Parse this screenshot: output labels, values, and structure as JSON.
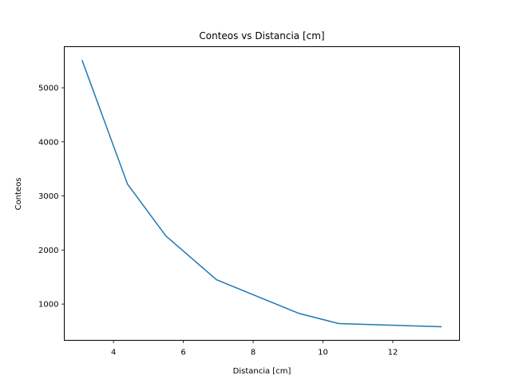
{
  "chart_data": {
    "type": "line",
    "title": "Conteos vs Distancia [cm]",
    "xlabel": "Distancia [cm]",
    "ylabel": "Conteos",
    "xlim": [
      2.59,
      13.91
    ],
    "ylim": [
      330,
      5760
    ],
    "xticks": [
      4,
      6,
      8,
      10,
      12
    ],
    "yticks": [
      1000,
      2000,
      3000,
      4000,
      5000
    ],
    "grid": false,
    "series": [
      {
        "color": "#1f77b4",
        "x": [
          3.1,
          4.4,
          5.5,
          6.95,
          9.3,
          10.45,
          13.4
        ],
        "y": [
          5510,
          3220,
          2260,
          1450,
          830,
          640,
          580
        ]
      }
    ]
  }
}
